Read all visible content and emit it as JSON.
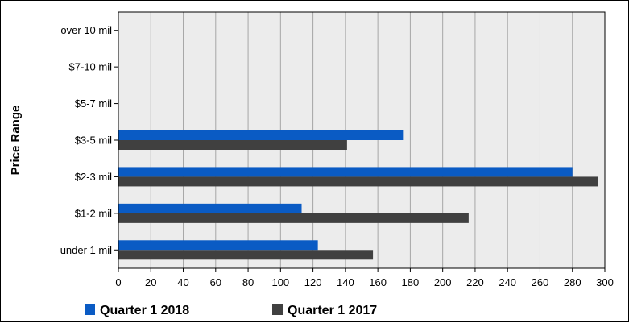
{
  "chart_data": {
    "type": "bar",
    "orientation": "horizontal",
    "title": "",
    "xlabel": "",
    "ylabel": "Price Range",
    "categories": [
      "under 1 mil",
      "$1-2 mil",
      "$2-3 mil",
      "$3-5 mil",
      "$5-7 mil",
      "$7-10 mil",
      "over 10 mil"
    ],
    "series": [
      {
        "name": "Quarter 1 2018",
        "color": "#0a5bc4",
        "values": [
          123,
          113,
          280,
          176,
          0,
          0,
          0
        ]
      },
      {
        "name": "Quarter 1 2017",
        "color": "#404040",
        "values": [
          157,
          216,
          296,
          141,
          0,
          0,
          0
        ]
      }
    ],
    "xlim": [
      0,
      300
    ],
    "xticks": [
      0,
      20,
      40,
      60,
      80,
      100,
      120,
      140,
      160,
      180,
      200,
      220,
      240,
      260,
      280,
      300
    ],
    "grid": true,
    "legend_position": "bottom"
  }
}
